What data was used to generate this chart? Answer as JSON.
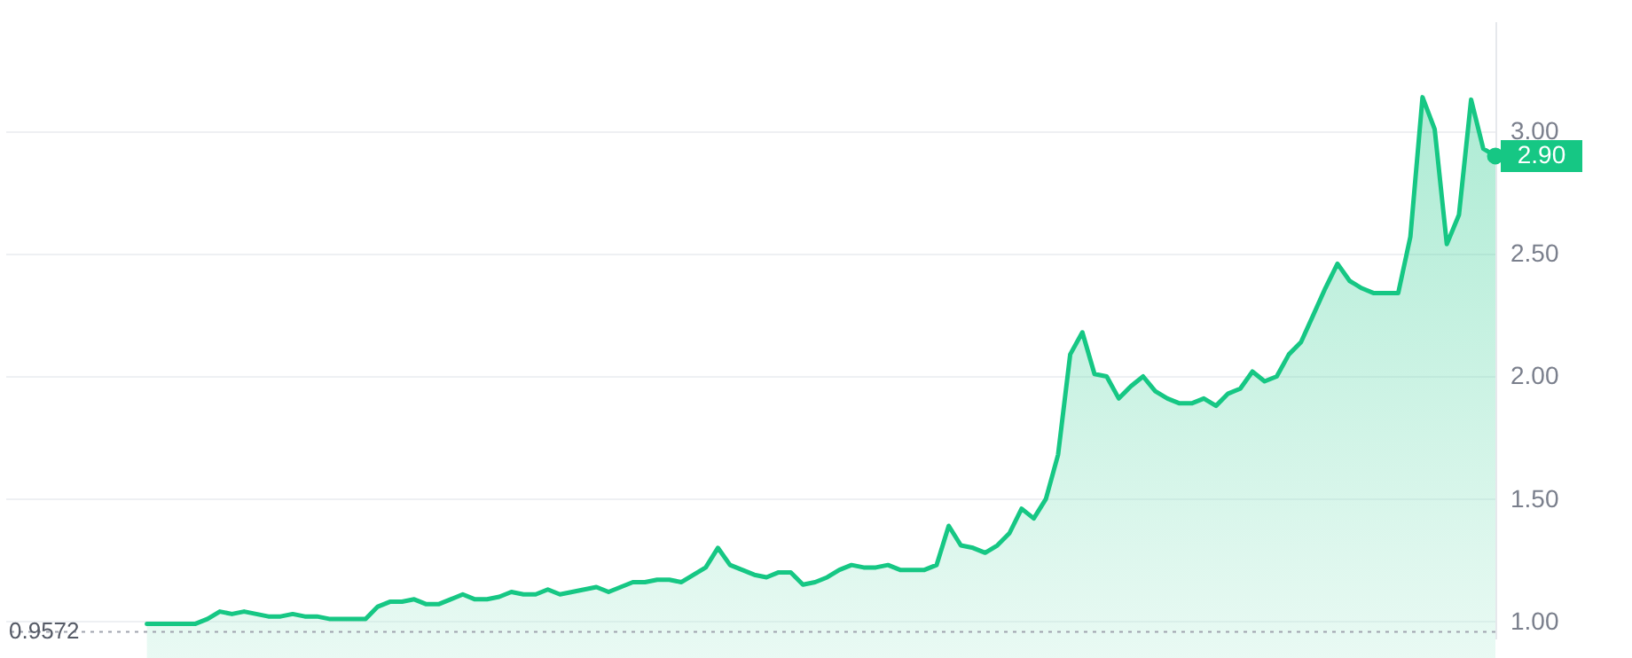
{
  "chart_data": {
    "type": "area",
    "categories": [
      null,
      null,
      null,
      null,
      null,
      null,
      null,
      null,
      null,
      null,
      null,
      null,
      null,
      null,
      null,
      null,
      null,
      null,
      null,
      null,
      null,
      null,
      null,
      null,
      null,
      null,
      null,
      null,
      null,
      null,
      null,
      null,
      null,
      null,
      null,
      null,
      null,
      null,
      null,
      null,
      null,
      null,
      null,
      null,
      null,
      null,
      null,
      null,
      null,
      null,
      null,
      null,
      null,
      null,
      null,
      null,
      null,
      null,
      null,
      null,
      null,
      null,
      null,
      null,
      null,
      null,
      null,
      null,
      null,
      null,
      null,
      null,
      null,
      null,
      null,
      null,
      null,
      null,
      null,
      null,
      null,
      null,
      null,
      null,
      null,
      null,
      null,
      null,
      null,
      null,
      null,
      null,
      null,
      null,
      null,
      null,
      null,
      null,
      null,
      null,
      null,
      null,
      null,
      null,
      null,
      null,
      null,
      null,
      null,
      null,
      null,
      null
    ],
    "series": [
      {
        "color": "#16c784",
        "values": [
          0.99,
          0.99,
          0.99,
          0.99,
          0.99,
          1.01,
          1.04,
          1.03,
          1.04,
          1.03,
          1.02,
          1.02,
          1.03,
          1.02,
          1.02,
          1.01,
          1.01,
          1.01,
          1.01,
          1.06,
          1.08,
          1.08,
          1.09,
          1.07,
          1.07,
          1.09,
          1.11,
          1.09,
          1.09,
          1.1,
          1.12,
          1.11,
          1.11,
          1.13,
          1.11,
          1.12,
          1.13,
          1.14,
          1.12,
          1.14,
          1.16,
          1.16,
          1.17,
          1.17,
          1.16,
          1.19,
          1.22,
          1.3,
          1.23,
          1.21,
          1.19,
          1.18,
          1.2,
          1.2,
          1.15,
          1.16,
          1.18,
          1.21,
          1.23,
          1.22,
          1.22,
          1.23,
          1.21,
          1.21,
          1.21,
          1.23,
          1.39,
          1.31,
          1.3,
          1.28,
          1.31,
          1.36,
          1.46,
          1.42,
          1.5,
          1.68,
          2.09,
          2.18,
          2.01,
          2.0,
          1.91,
          1.96,
          2.0,
          1.94,
          1.91,
          1.89,
          1.89,
          1.91,
          1.88,
          1.93,
          1.95,
          2.02,
          1.98,
          2.0,
          2.09,
          2.14,
          2.25,
          2.36,
          2.46,
          2.39,
          2.36,
          2.34,
          2.34,
          2.34,
          2.57,
          3.14,
          3.01,
          2.54,
          2.66,
          3.13,
          2.93,
          2.9
        ],
        "value_labels": [
          null,
          null,
          null,
          null,
          null,
          null,
          null,
          null,
          null,
          null,
          null,
          null,
          null,
          null,
          null,
          null,
          null,
          null,
          null,
          null,
          null,
          null,
          null,
          null,
          null,
          null,
          null,
          null,
          null,
          null,
          null,
          null,
          null,
          null,
          null,
          null,
          null,
          null,
          null,
          null,
          null,
          null,
          null,
          null,
          null,
          null,
          null,
          null,
          null,
          null,
          null,
          null,
          null,
          null,
          null,
          null,
          null,
          null,
          null,
          null,
          null,
          null,
          null,
          null,
          null,
          null,
          null,
          null,
          null,
          null,
          null,
          null,
          null,
          null,
          null,
          null,
          null,
          null,
          null,
          null,
          null,
          null,
          null,
          null,
          null,
          null,
          null,
          null,
          null,
          null,
          null,
          null,
          null,
          null,
          null,
          null,
          null,
          null,
          null,
          null,
          null,
          null,
          null,
          null,
          null,
          null,
          null,
          null,
          null,
          null,
          null,
          "2.90"
        ]
      }
    ],
    "ylim": [
      0.93,
      3.45
    ],
    "yticks": [
      {
        "value": 1,
        "label": "1.00"
      },
      {
        "value": 1.5,
        "label": "1.50"
      },
      {
        "value": 2,
        "label": "2.00"
      },
      {
        "value": 2.5,
        "label": "2.50"
      },
      {
        "value": 3,
        "label": "3.00"
      }
    ],
    "grid": "y",
    "tick_labels": "y",
    "ref_lines": [
      {
        "axis": "y",
        "value": 0.9572,
        "label": "0.9572",
        "color": "#a0a4ae",
        "line_style": "dotted"
      }
    ]
  }
}
